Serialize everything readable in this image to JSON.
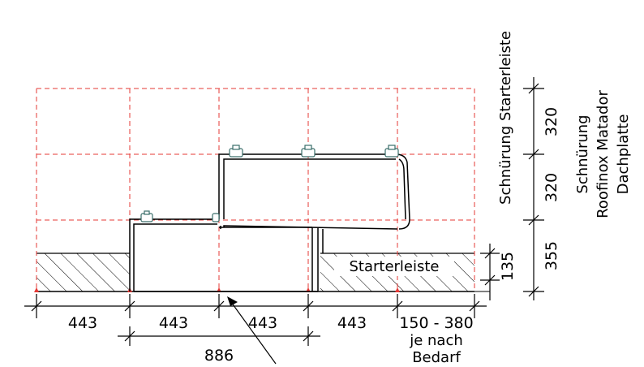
{
  "diagram": {
    "labels": {
      "starter_strip": "Starterleiste",
      "chalk_line_starter": "Schnürung Starterleiste",
      "chalk_line_panel_1": "Schnürung",
      "chalk_line_panel_2": "Roofinox Matador",
      "chalk_line_panel_3": "Dachplatte",
      "as_needed_1": "je nach",
      "as_needed_2": "Bedarf"
    },
    "horizontal_dimensions": {
      "spacing_1": "443",
      "spacing_2": "443",
      "spacing_3": "443",
      "spacing_4": "443",
      "remainder": "150 - 380",
      "double_spacing": "886"
    },
    "vertical_dimensions": {
      "row_top": "320",
      "row_middle": "320",
      "row_bottom": "355",
      "starter_height": "135"
    },
    "colors": {
      "lines": "#000000",
      "chalk_lines": "#e53935",
      "markers": "#e53935",
      "background": "#ffffff"
    }
  }
}
